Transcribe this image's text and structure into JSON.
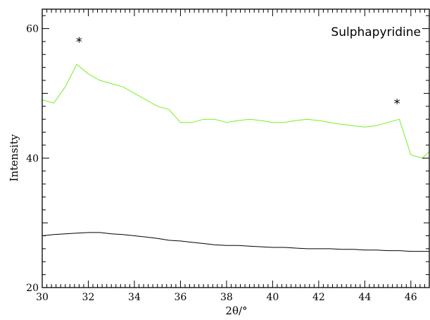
{
  "chart_data": {
    "type": "line",
    "title": "Sulphapyridine",
    "xlabel": "2θ/°",
    "ylabel": "Intensity",
    "xlim": [
      30,
      46.8
    ],
    "ylim": [
      20,
      63
    ],
    "x_ticks": [
      30,
      32,
      34,
      36,
      38,
      40,
      42,
      44,
      46
    ],
    "y_ticks": [
      20,
      40,
      60
    ],
    "x_tick_labels": [
      "30",
      "32",
      "34",
      "36",
      "38",
      "40",
      "42",
      "44",
      "46"
    ],
    "y_tick_labels": [
      "20",
      "40",
      "60"
    ],
    "grid": false,
    "legend": "none",
    "annotations": [
      {
        "text": "*",
        "x": 31.6,
        "y": 57.5
      },
      {
        "text": "*",
        "x": 45.4,
        "y": 48.0
      }
    ],
    "series": [
      {
        "color": "#77ee22",
        "x": [
          30.0,
          30.5,
          31.0,
          31.5,
          32.0,
          32.5,
          33.0,
          33.5,
          34.0,
          34.5,
          35.0,
          35.5,
          36.0,
          36.5,
          37.0,
          37.5,
          38.0,
          38.5,
          39.0,
          39.5,
          40.0,
          40.5,
          41.0,
          41.5,
          42.0,
          42.5,
          43.0,
          43.5,
          44.0,
          44.5,
          45.0,
          45.5,
          46.0,
          46.5,
          46.8
        ],
        "values": [
          49,
          48.5,
          51,
          54.5,
          53,
          52,
          51.5,
          51,
          50,
          49,
          48,
          47.5,
          45.5,
          45.5,
          46,
          46,
          45.5,
          45.8,
          46,
          45.8,
          45.5,
          45.5,
          45.8,
          46,
          45.8,
          45.5,
          45.2,
          45,
          44.8,
          45,
          45.5,
          46,
          40.5,
          40,
          41
        ]
      },
      {
        "color": "#000000",
        "x": [
          30.0,
          30.5,
          31.0,
          31.5,
          32.0,
          32.5,
          33.0,
          33.5,
          34.0,
          34.5,
          35.0,
          35.5,
          36.0,
          36.5,
          37.0,
          37.5,
          38.0,
          38.5,
          39.0,
          39.5,
          40.0,
          40.5,
          41.0,
          41.5,
          42.0,
          42.5,
          43.0,
          43.5,
          44.0,
          44.5,
          45.0,
          45.5,
          46.0,
          46.5,
          46.8
        ],
        "values": [
          28,
          28.2,
          28.3,
          28.4,
          28.5,
          28.5,
          28.3,
          28.2,
          28.0,
          27.8,
          27.6,
          27.3,
          27.2,
          27.0,
          26.8,
          26.6,
          26.5,
          26.5,
          26.4,
          26.3,
          26.2,
          26.2,
          26.1,
          26.0,
          26.0,
          26.0,
          25.9,
          25.9,
          25.8,
          25.8,
          25.7,
          25.7,
          25.6,
          25.6,
          25.6
        ]
      }
    ]
  }
}
